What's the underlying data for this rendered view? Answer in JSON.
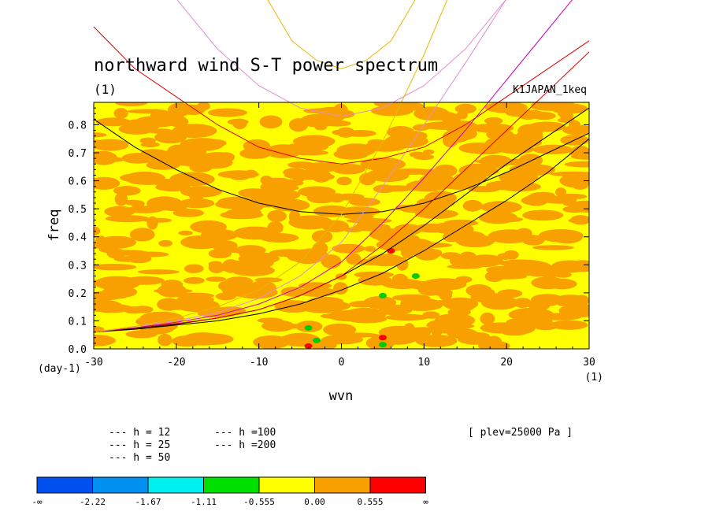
{
  "chart_data": {
    "type": "heatmap",
    "title": "northward wind S-T power spectrum",
    "subtitle_left": "(1)",
    "subtitle_right": "K1JAPAN_1keq",
    "xlabel": "wvn",
    "ylabel": "freq",
    "x_unit": "(1)",
    "y_unit": "(day-1)",
    "xlim": [
      -30,
      30
    ],
    "ylim": [
      0,
      0.88
    ],
    "x_ticks": [
      {
        "value": -30,
        "label": "-30"
      },
      {
        "value": -20,
        "label": "-20"
      },
      {
        "value": -10,
        "label": "-10"
      },
      {
        "value": 0,
        "label": "0"
      },
      {
        "value": 10,
        "label": "10"
      },
      {
        "value": 20,
        "label": "20"
      },
      {
        "value": 30,
        "label": "30"
      }
    ],
    "y_ticks": [
      {
        "value": 0.0,
        "label": "0.0"
      },
      {
        "value": 0.1,
        "label": "0.1"
      },
      {
        "value": 0.2,
        "label": "0.2"
      },
      {
        "value": 0.3,
        "label": "0.3"
      },
      {
        "value": 0.4,
        "label": "0.4"
      },
      {
        "value": 0.5,
        "label": "0.5"
      },
      {
        "value": 0.6,
        "label": "0.6"
      },
      {
        "value": 0.7,
        "label": "0.7"
      },
      {
        "value": 0.8,
        "label": "0.8"
      }
    ],
    "annotation": "[ plev=25000 Pa ]",
    "dispersion_curves": [
      {
        "name": "h = 12",
        "label": "--- h = 12",
        "color": "#000000",
        "ig": {
          "x": [
            -30,
            -25,
            -20,
            -15,
            -10,
            -5,
            0,
            5,
            10,
            15,
            20,
            25,
            30
          ],
          "y": [
            0.82,
            0.72,
            0.64,
            0.57,
            0.52,
            0.49,
            0.48,
            0.49,
            0.52,
            0.57,
            0.63,
            0.7,
            0.77
          ]
        },
        "mrg": {
          "x": [
            -30,
            -25,
            -20,
            -15,
            -10,
            -5,
            0,
            5,
            10,
            15,
            20,
            25,
            30
          ],
          "y": [
            0.06,
            0.07,
            0.085,
            0.1,
            0.125,
            0.16,
            0.21,
            0.27,
            0.35,
            0.44,
            0.53,
            0.63,
            0.75
          ]
        },
        "kelvin": {
          "x": [
            -30,
            -25,
            -20,
            -15,
            -10,
            -5,
            0,
            5,
            10,
            15,
            20,
            25,
            30
          ],
          "y": [
            0.06,
            0.072,
            0.088,
            0.11,
            0.14,
            0.19,
            0.26,
            0.34,
            0.44,
            0.55,
            0.66,
            0.76,
            0.86
          ]
        }
      },
      {
        "name": "h = 25",
        "label": "--- h = 25",
        "color": "#dd0000",
        "ig": {
          "x": [
            -30,
            -25,
            -20,
            -15,
            -10,
            -5,
            0,
            5,
            10,
            15,
            20,
            25,
            30
          ],
          "y": [
            1.15,
            1.0,
            0.9,
            0.8,
            0.72,
            0.68,
            0.66,
            0.68,
            0.72,
            0.8,
            0.9,
            1.0,
            1.1
          ]
        },
        "mrg": {
          "x": [
            -30,
            -25,
            -20,
            -15,
            -10,
            -5,
            0,
            5,
            10,
            15,
            20,
            25,
            30
          ],
          "y": [
            0.06,
            0.075,
            0.09,
            0.11,
            0.14,
            0.19,
            0.26,
            0.37,
            0.5,
            0.64,
            0.78,
            0.92,
            1.06
          ]
        }
      },
      {
        "name": "h = 50",
        "label": "--- h = 50",
        "color": "#d000b0",
        "mrg": {
          "x": [
            -30,
            -25,
            -20,
            -15,
            -10,
            -5,
            0,
            5,
            10,
            15,
            20,
            25,
            30
          ],
          "y": [
            0.06,
            0.075,
            0.095,
            0.12,
            0.16,
            0.22,
            0.31,
            0.45,
            0.61,
            0.78,
            0.96,
            1.14,
            1.32
          ]
        }
      },
      {
        "name": "h =100",
        "label": "--- h =100",
        "color": "#e090d0",
        "ig": {
          "x": [
            -30,
            -25,
            -20,
            -15,
            -10,
            -5,
            0,
            5,
            10,
            15,
            20,
            25,
            30
          ],
          "y": [
            1.7,
            1.45,
            1.25,
            1.07,
            0.94,
            0.86,
            0.83,
            0.86,
            0.94,
            1.07,
            1.25,
            1.45,
            1.7
          ]
        },
        "mrg": {
          "x": [
            -30,
            -25,
            -20,
            -15,
            -10,
            -5,
            0,
            5,
            10,
            15,
            20,
            25,
            30
          ],
          "y": [
            0.06,
            0.08,
            0.1,
            0.13,
            0.18,
            0.26,
            0.38,
            0.58,
            0.8,
            1.02,
            1.25,
            1.48,
            1.72
          ]
        }
      },
      {
        "name": "h =200",
        "label": "--- h =200",
        "color": "#e8b800",
        "ig": {
          "x": [
            -12,
            -9,
            -6,
            -3,
            0,
            3,
            6,
            9,
            12
          ],
          "y": [
            1.6,
            1.25,
            1.1,
            1.03,
            1.0,
            1.03,
            1.1,
            1.25,
            1.6
          ]
        },
        "mrg": {
          "x": [
            -30,
            -25,
            -20,
            -15,
            -10,
            -5,
            0,
            5,
            10,
            15
          ],
          "y": [
            0.06,
            0.08,
            0.11,
            0.15,
            0.21,
            0.31,
            0.48,
            0.74,
            1.05,
            1.4
          ]
        }
      }
    ],
    "small_features": [
      {
        "x": -4,
        "y": 0.075,
        "color": "#00cc00"
      },
      {
        "x": -3,
        "y": 0.03,
        "color": "#00cc00"
      },
      {
        "x": -4,
        "y": 0.01,
        "color": "#ff0000"
      },
      {
        "x": 5,
        "y": 0.04,
        "color": "#ff0000"
      },
      {
        "x": 5,
        "y": 0.015,
        "color": "#00cc00"
      },
      {
        "x": 5,
        "y": 0.19,
        "color": "#00cc00"
      },
      {
        "x": 9,
        "y": 0.26,
        "color": "#00cc00"
      },
      {
        "x": 6,
        "y": 0.35,
        "color": "#ff0000"
      }
    ],
    "colorbar": {
      "colors": [
        "#0050f0",
        "#0090f0",
        "#00f0f0",
        "#00e000",
        "#ffff00",
        "#f7a000",
        "#ff0000"
      ],
      "labels": [
        "-∞",
        "-2.22",
        "-1.67",
        "-1.11",
        "-0.555",
        "0.00",
        "0.555",
        "∞"
      ]
    },
    "field_colors": {
      "low": "#ffff00",
      "high": "#f7a000"
    }
  }
}
